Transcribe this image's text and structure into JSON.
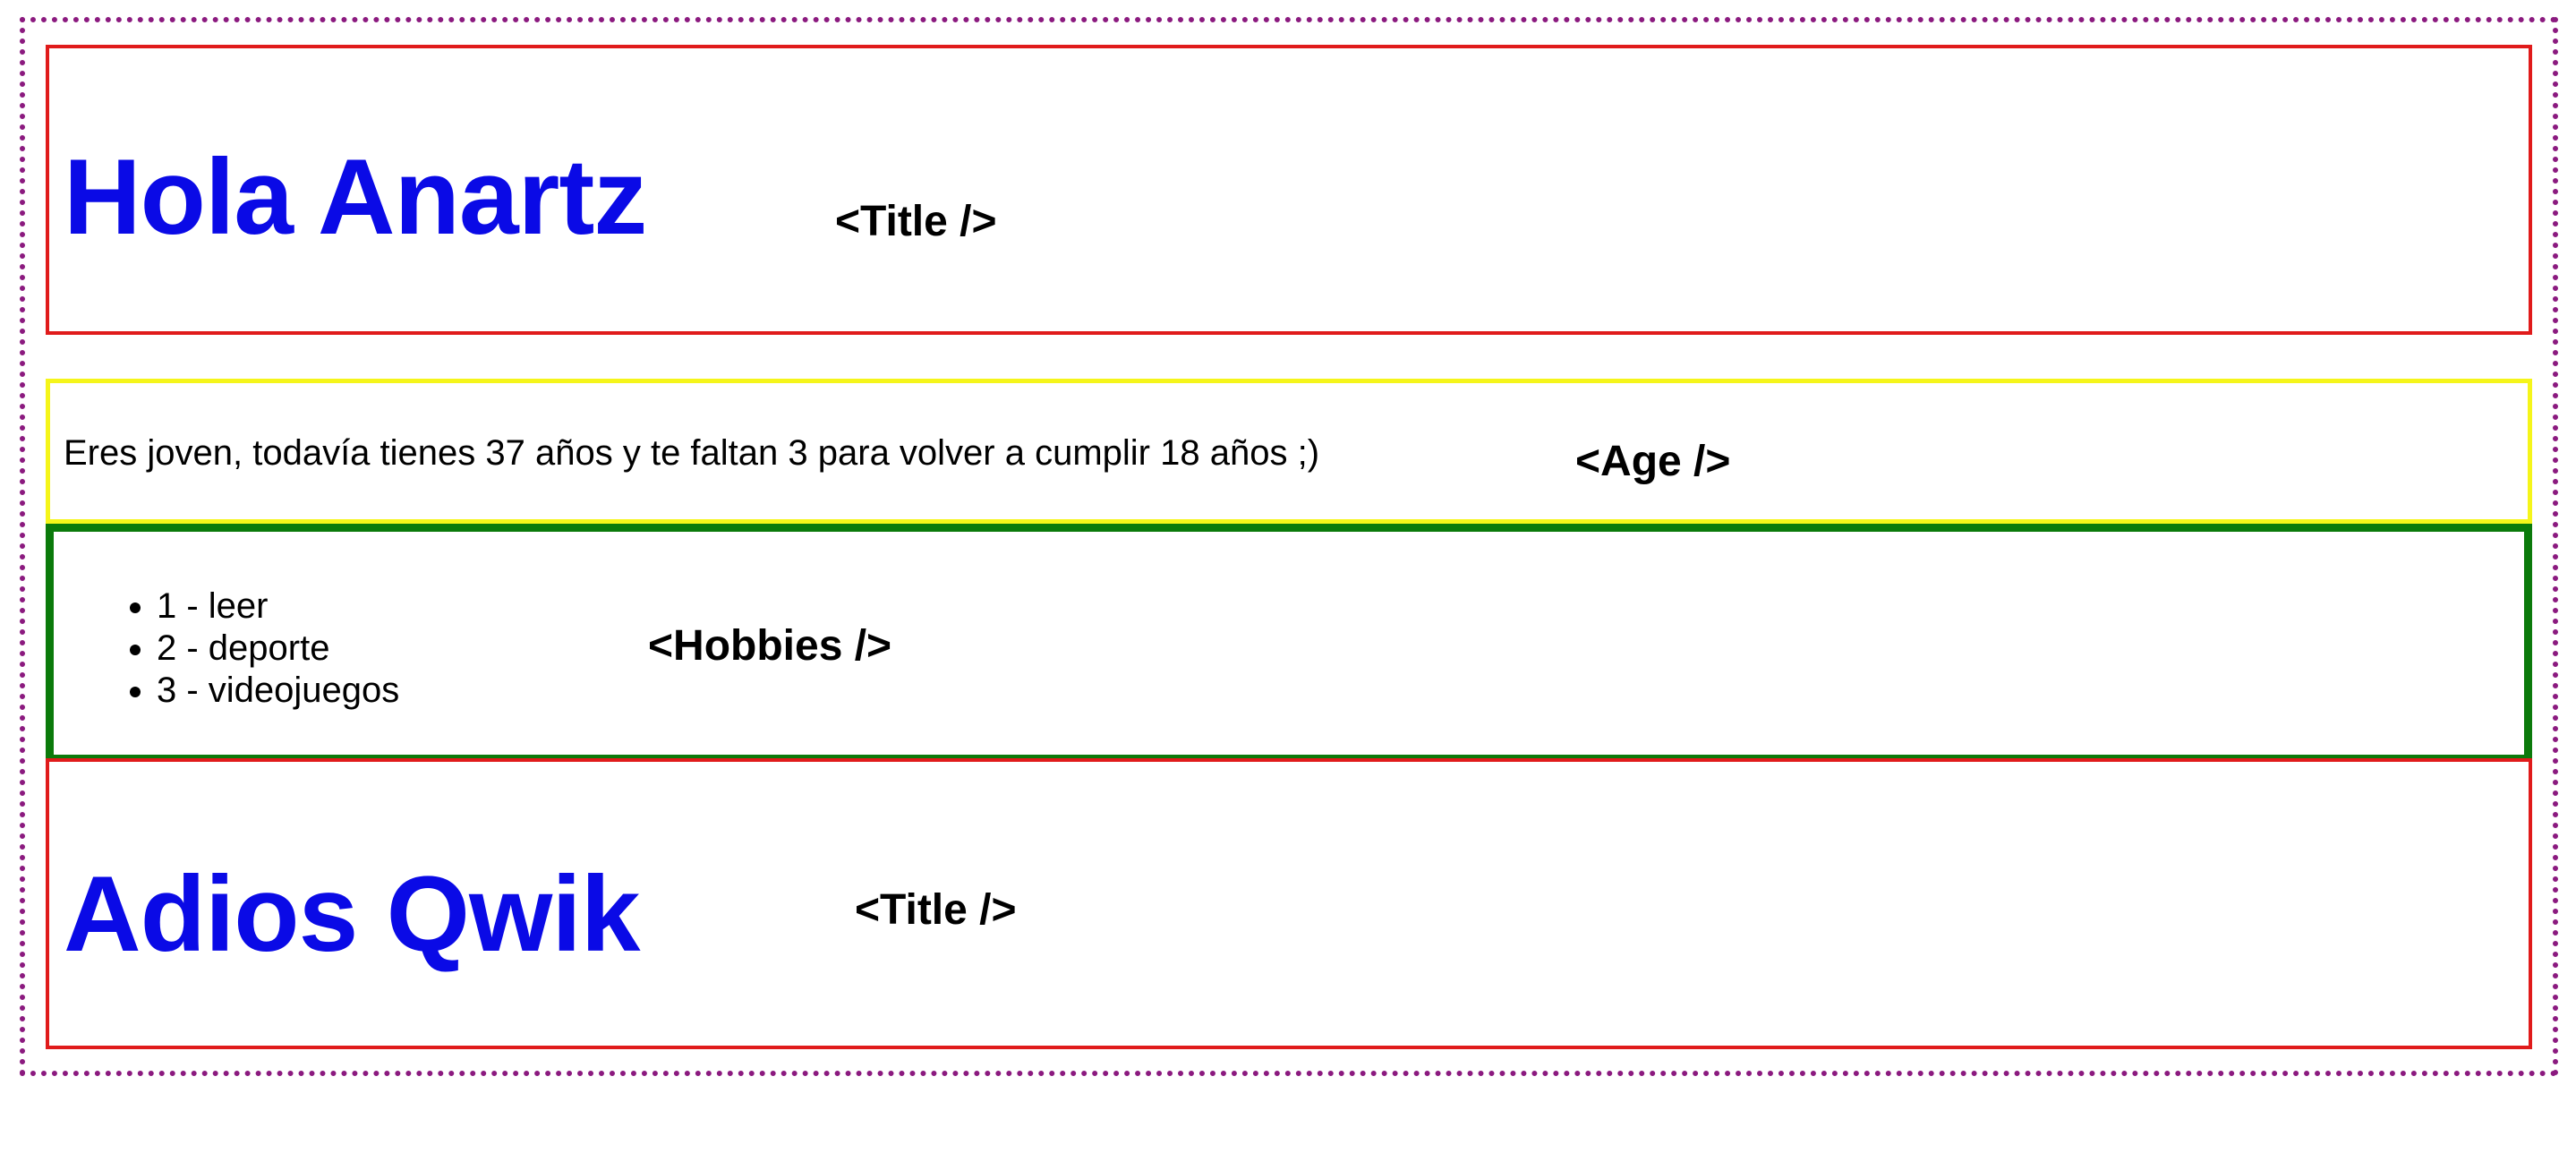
{
  "title_top": {
    "heading": "Hola Anartz",
    "component_tag": "<Title />",
    "heading_color": "#0a0ae6",
    "border_color": "#e01b1b"
  },
  "age": {
    "text": "Eres joven, todavía tienes 37 años y te faltan 3 para volver a cumplir 18 años ;)",
    "component_tag": "<Age />",
    "border_color": "#f5f51a"
  },
  "hobbies": {
    "items": [
      "1 - leer",
      "2 - deporte",
      "3 - videojuegos"
    ],
    "component_tag": "<Hobbies />",
    "border_color": "#0b7a0b"
  },
  "title_bottom": {
    "heading": "Adios Qwik",
    "component_tag": "<Title />",
    "heading_color": "#0a0ae6",
    "border_color": "#e01b1b"
  },
  "wrapper": {
    "border_color": "#8b1a7f"
  }
}
